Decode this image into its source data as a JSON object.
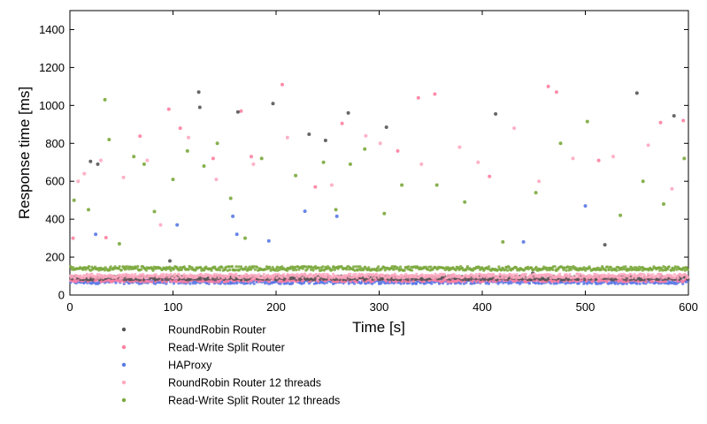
{
  "chart_data": {
    "type": "scatter",
    "xlabel": "Time [s]",
    "ylabel": "Response time [ms]",
    "xlim": [
      0,
      600
    ],
    "ylim": [
      0,
      1500
    ],
    "xticks": [
      0,
      100,
      200,
      300,
      400,
      500,
      600
    ],
    "yticks": [
      0,
      200,
      400,
      600,
      800,
      1000,
      1200,
      1400
    ],
    "grid": false,
    "legend_position": "bottom-left, below plot",
    "series": [
      {
        "name": "RoundRobin Router",
        "color": "#555555",
        "baseline_ms": 90,
        "outliers": [
          [
            20,
            705
          ],
          [
            27,
            690
          ],
          [
            97,
            180
          ],
          [
            125,
            1070
          ],
          [
            126,
            990
          ],
          [
            163,
            965
          ],
          [
            197,
            1010
          ],
          [
            232,
            848
          ],
          [
            248,
            815
          ],
          [
            270,
            960
          ],
          [
            307,
            885
          ],
          [
            413,
            955
          ],
          [
            449,
            115
          ],
          [
            519,
            265
          ],
          [
            550,
            1065
          ],
          [
            586,
            945
          ]
        ]
      },
      {
        "name": "Read-Write Split Router",
        "color": "#ff7fa0",
        "baseline_ms": 80,
        "outliers": [
          [
            3,
            300
          ],
          [
            35,
            303
          ],
          [
            68,
            838
          ],
          [
            96,
            980
          ],
          [
            107,
            880
          ],
          [
            139,
            720
          ],
          [
            166,
            970
          ],
          [
            176,
            730
          ],
          [
            206,
            1110
          ],
          [
            238,
            570
          ],
          [
            264,
            905
          ],
          [
            318,
            760
          ],
          [
            338,
            1040
          ],
          [
            354,
            1060
          ],
          [
            407,
            625
          ],
          [
            464,
            1100
          ],
          [
            472,
            1070
          ],
          [
            513,
            710
          ],
          [
            573,
            910
          ],
          [
            595,
            920
          ]
        ]
      },
      {
        "name": "HAProxy",
        "color": "#5a78e6",
        "baseline_ms": 70,
        "outliers": [
          [
            25,
            320
          ],
          [
            104,
            370
          ],
          [
            158,
            415
          ],
          [
            162,
            320
          ],
          [
            193,
            285
          ],
          [
            228,
            442
          ],
          [
            259,
            415
          ],
          [
            440,
            280
          ],
          [
            500,
            470
          ]
        ]
      },
      {
        "name": "RoundRobin Router 12 threads",
        "color": "#ffa8c0",
        "baseline_ms": 100,
        "outliers": [
          [
            8,
            600
          ],
          [
            14,
            640
          ],
          [
            30,
            710
          ],
          [
            52,
            620
          ],
          [
            75,
            710
          ],
          [
            88,
            370
          ],
          [
            115,
            830
          ],
          [
            142,
            610
          ],
          [
            178,
            690
          ],
          [
            211,
            830
          ],
          [
            254,
            580
          ],
          [
            287,
            840
          ],
          [
            301,
            800
          ],
          [
            341,
            690
          ],
          [
            378,
            780
          ],
          [
            396,
            700
          ],
          [
            431,
            880
          ],
          [
            455,
            600
          ],
          [
            488,
            720
          ],
          [
            527,
            730
          ],
          [
            561,
            790
          ],
          [
            584,
            560
          ]
        ]
      },
      {
        "name": "Read-Write Split Router 12 threads",
        "color": "#7aa83c",
        "baseline_ms": 140,
        "outliers": [
          [
            4,
            500
          ],
          [
            18,
            450
          ],
          [
            34,
            1030
          ],
          [
            38,
            820
          ],
          [
            48,
            270
          ],
          [
            62,
            730
          ],
          [
            72,
            690
          ],
          [
            82,
            440
          ],
          [
            100,
            610
          ],
          [
            114,
            760
          ],
          [
            130,
            680
          ],
          [
            143,
            800
          ],
          [
            156,
            510
          ],
          [
            170,
            300
          ],
          [
            186,
            720
          ],
          [
            219,
            630
          ],
          [
            246,
            700
          ],
          [
            258,
            450
          ],
          [
            272,
            690
          ],
          [
            286,
            770
          ],
          [
            305,
            430
          ],
          [
            322,
            580
          ],
          [
            356,
            580
          ],
          [
            383,
            490
          ],
          [
            420,
            280
          ],
          [
            452,
            540
          ],
          [
            476,
            800
          ],
          [
            502,
            915
          ],
          [
            534,
            420
          ],
          [
            556,
            600
          ],
          [
            576,
            480
          ],
          [
            596,
            720
          ]
        ]
      }
    ]
  }
}
